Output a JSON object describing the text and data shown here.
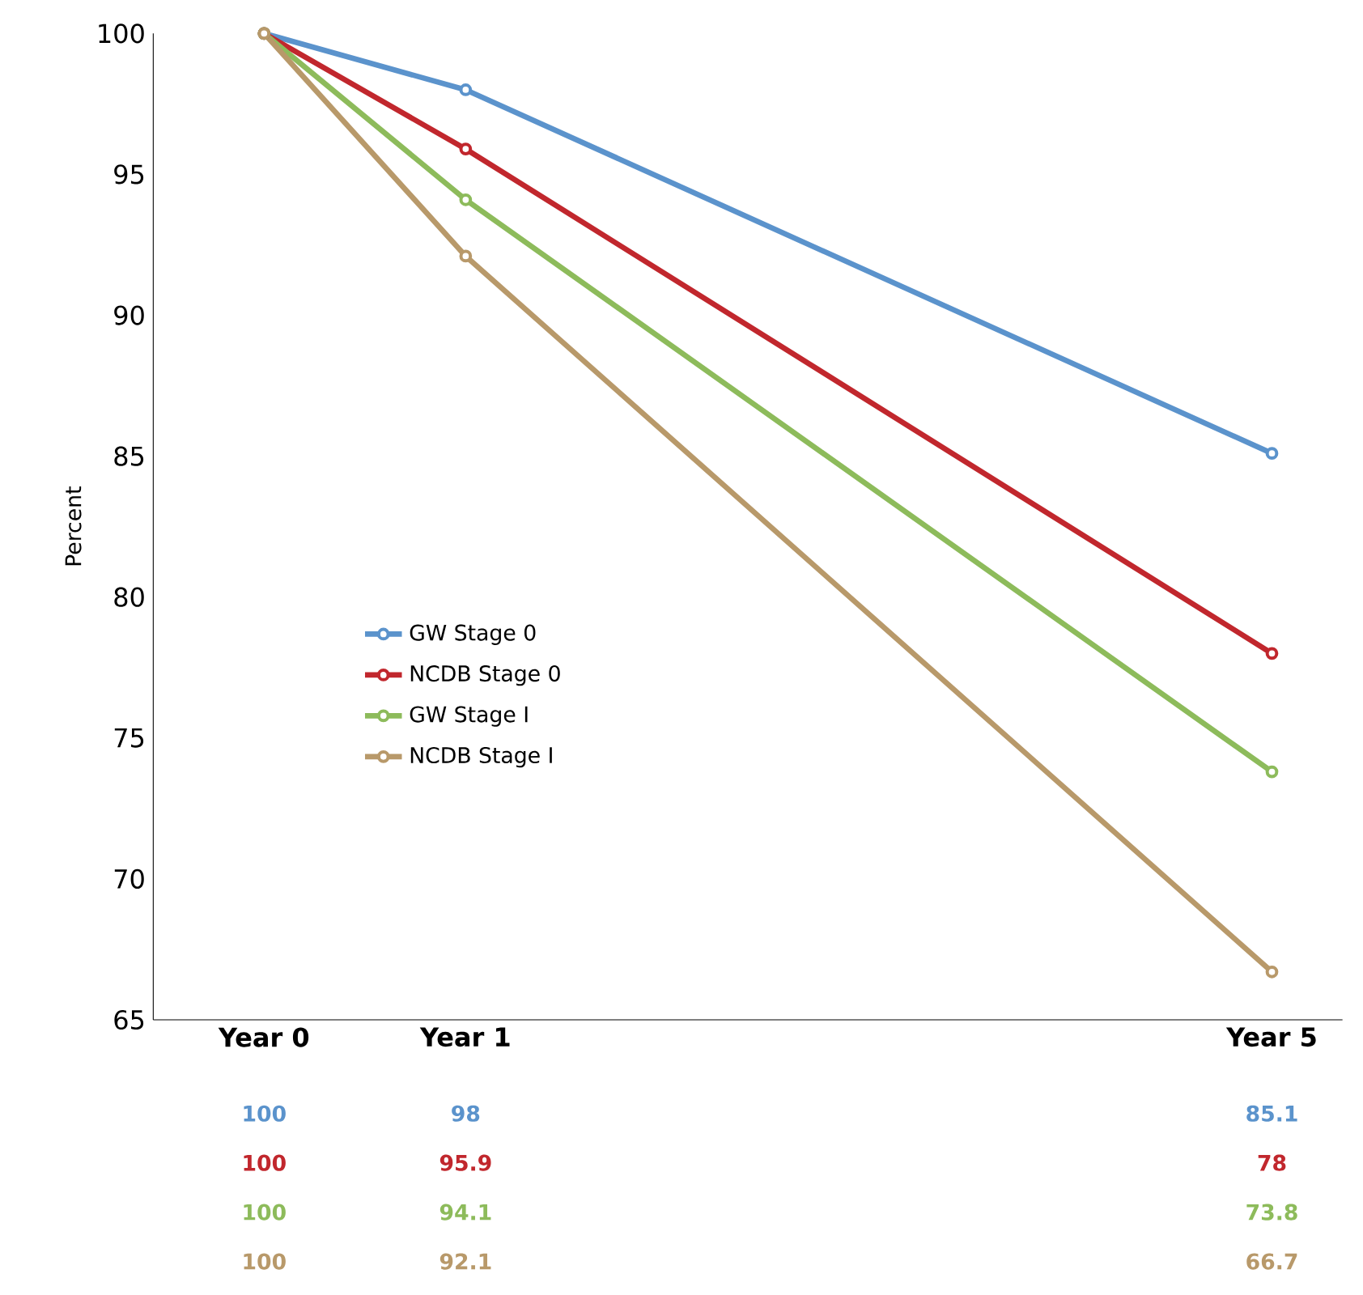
{
  "chart_data": {
    "type": "line",
    "ylabel": "Percent",
    "categories": [
      "Year 0",
      "Year 1",
      null,
      null,
      null,
      "Year 5"
    ],
    "series": [
      {
        "name": "GW Stage 0",
        "color": "#5b93cc",
        "values": [
          100,
          98,
          null,
          null,
          null,
          85.1
        ]
      },
      {
        "name": "NCDB Stage 0",
        "color": "#c1272d",
        "values": [
          100,
          95.9,
          null,
          null,
          null,
          78
        ]
      },
      {
        "name": "GW Stage I",
        "color": "#8dbb5b",
        "values": [
          100,
          94.1,
          null,
          null,
          null,
          73.8
        ]
      },
      {
        "name": "NCDB Stage I",
        "color": "#b8996a",
        "values": [
          100,
          92.1,
          null,
          null,
          null,
          66.7
        ]
      }
    ],
    "ylim": [
      65,
      100
    ],
    "yticks": [
      65,
      70,
      75,
      80,
      85,
      90,
      95,
      100
    ],
    "legend": "left",
    "marker": "circle",
    "line_style": "solid",
    "data_labels": true,
    "grid": false
  }
}
